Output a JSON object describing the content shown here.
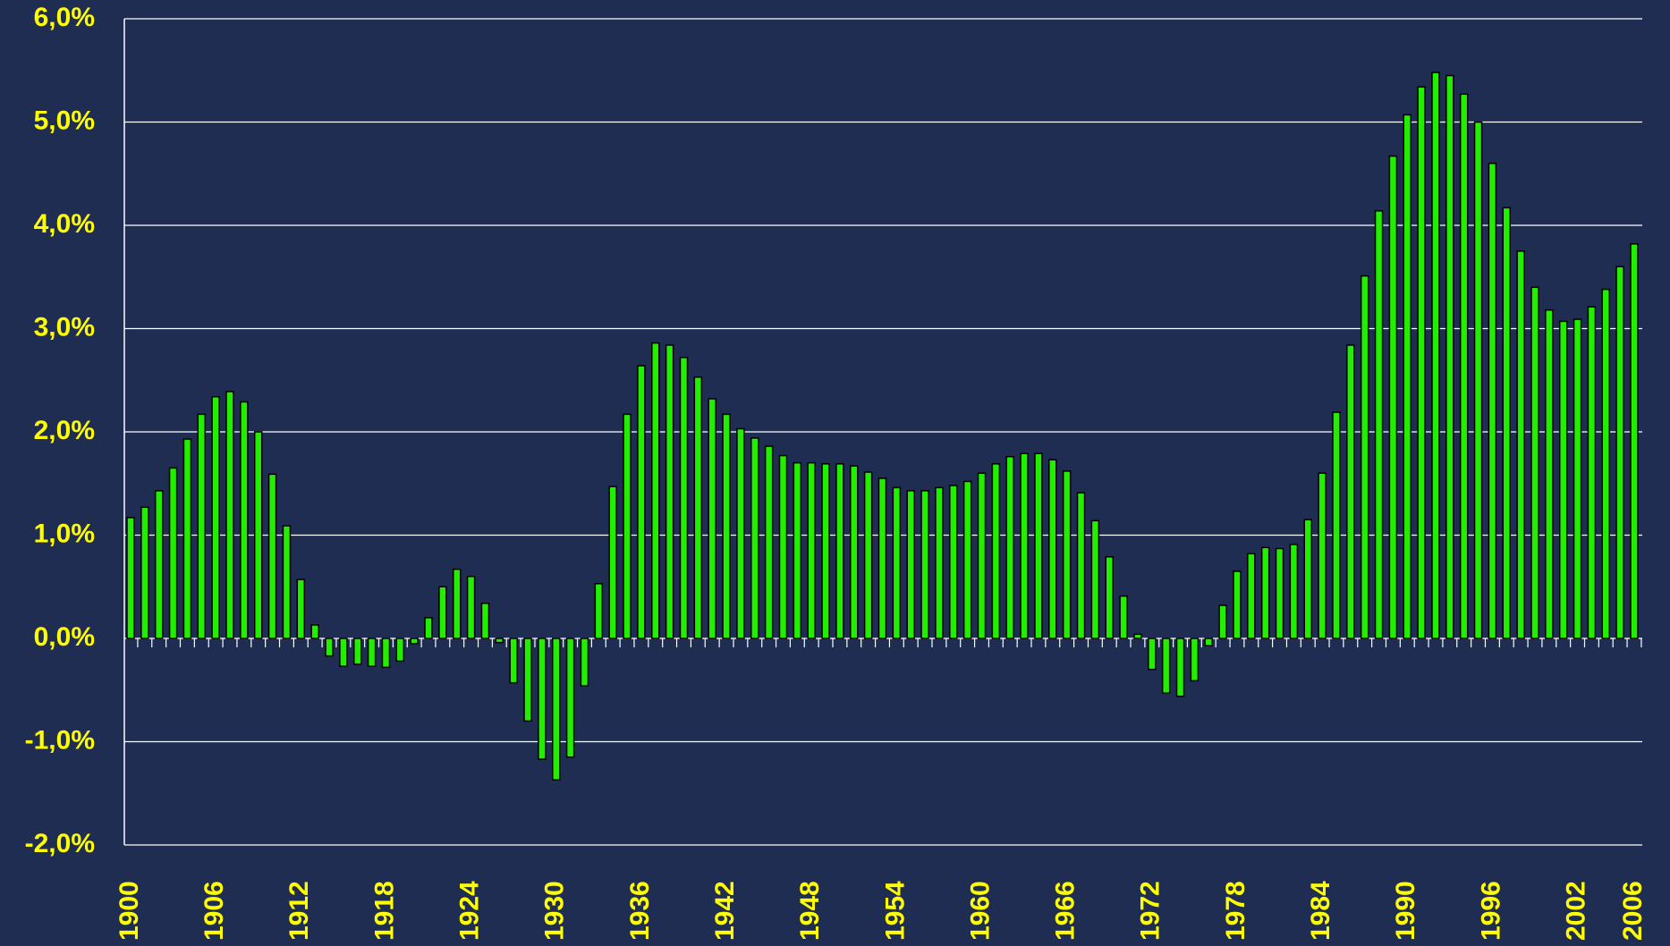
{
  "chart_data": {
    "type": "bar",
    "categories": [
      "1900",
      null,
      null,
      null,
      null,
      null,
      "1906",
      null,
      null,
      null,
      null,
      null,
      "1912",
      null,
      null,
      null,
      null,
      null,
      "1918",
      null,
      null,
      null,
      null,
      null,
      "1924",
      null,
      null,
      null,
      null,
      null,
      "1930",
      null,
      null,
      null,
      null,
      null,
      "1936",
      null,
      null,
      null,
      null,
      null,
      "1942",
      null,
      null,
      null,
      null,
      null,
      "1948",
      null,
      null,
      null,
      null,
      null,
      "1954",
      null,
      null,
      null,
      null,
      null,
      "1960",
      null,
      null,
      null,
      null,
      null,
      "1966",
      null,
      null,
      null,
      null,
      null,
      "1972",
      null,
      null,
      null,
      null,
      null,
      "1978",
      null,
      null,
      null,
      null,
      null,
      "1984",
      null,
      null,
      null,
      null,
      null,
      "1990",
      null,
      null,
      null,
      null,
      null,
      "1996",
      null,
      null,
      null,
      null,
      null,
      "2002",
      null,
      null,
      null,
      "2006"
    ],
    "values": [
      1.17,
      1.27,
      1.43,
      1.65,
      1.93,
      2.17,
      2.34,
      2.39,
      2.29,
      2.0,
      1.59,
      1.09,
      0.57,
      0.13,
      -0.17,
      -0.27,
      -0.25,
      -0.27,
      -0.28,
      -0.22,
      -0.05,
      0.2,
      0.5,
      0.67,
      0.6,
      0.34,
      -0.04,
      -0.43,
      -0.8,
      -1.17,
      -1.37,
      -1.15,
      -0.46,
      0.53,
      1.47,
      2.17,
      2.64,
      2.86,
      2.84,
      2.72,
      2.53,
      2.32,
      2.17,
      2.03,
      1.94,
      1.86,
      1.77,
      1.7,
      1.7,
      1.69,
      1.69,
      1.67,
      1.61,
      1.55,
      1.46,
      1.43,
      1.43,
      1.46,
      1.48,
      1.52,
      1.6,
      1.69,
      1.76,
      1.79,
      1.79,
      1.73,
      1.62,
      1.41,
      1.14,
      0.79,
      0.41,
      0.04,
      -0.3,
      -0.53,
      -0.56,
      -0.41,
      -0.07,
      0.32,
      0.65,
      0.82,
      0.88,
      0.87,
      0.91,
      1.15,
      1.6,
      2.19,
      2.84,
      3.51,
      4.14,
      4.67,
      5.07,
      5.34,
      5.48,
      5.45,
      5.27,
      5.0,
      4.6,
      4.17,
      3.75,
      3.4,
      3.18,
      3.07,
      3.09,
      3.21,
      3.38,
      3.6,
      3.82
    ],
    "color": "#22ee00",
    "ylim": [
      -2,
      6
    ],
    "yticks": [
      {
        "value": -2,
        "label": "-2,0%"
      },
      {
        "value": -1,
        "label": "-1,0%"
      },
      {
        "value": 0,
        "label": "0,0%"
      },
      {
        "value": 1,
        "label": "1,0%"
      },
      {
        "value": 2,
        "label": "2,0%"
      },
      {
        "value": 3,
        "label": "3,0%"
      },
      {
        "value": 4,
        "label": "4,0%"
      },
      {
        "value": 5,
        "label": "5,0%"
      },
      {
        "value": 6,
        "label": "6,0%"
      }
    ],
    "grid": true
  }
}
